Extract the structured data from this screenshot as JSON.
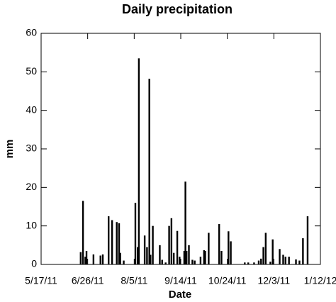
{
  "chart_data": {
    "type": "bar",
    "title": "Daily precipitation",
    "x_label": "Date",
    "y_label": "mm",
    "color": "#000000",
    "x": [
      "6/20/11",
      "6/22/11",
      "6/24/11",
      "6/25/11",
      "7/1/11",
      "7/7/11",
      "7/9/11",
      "7/14/11",
      "7/17/11",
      "7/21/11",
      "7/23/11",
      "7/24/11",
      "7/27/11",
      "8/6/11",
      "8/8/11",
      "8/9/11",
      "8/14/11",
      "8/16/11",
      "8/18/11",
      "8/19/11",
      "8/21/11",
      "8/27/11",
      "8/29/11",
      "9/1/11",
      "9/4/11",
      "9/6/11",
      "9/8/11",
      "9/11/11",
      "9/13/11",
      "9/17/11",
      "9/18/11",
      "9/19/11",
      "9/21/11",
      "9/24/11",
      "9/26/11",
      "10/1/11",
      "10/4/11",
      "10/5/11",
      "10/8/11",
      "10/17/11",
      "10/19/11",
      "10/25/11",
      "10/27/11",
      "11/8/11",
      "11/11/11",
      "11/16/11",
      "11/20/11",
      "11/22/11",
      "11/24/11",
      "11/26/11",
      "11/30/11",
      "12/2/11",
      "12/8/11",
      "12/11/11",
      "12/13/11",
      "12/16/11",
      "12/22/11",
      "12/25/11",
      "12/28/11",
      "1/1/12"
    ],
    "values": [
      3.2,
      16.5,
      2,
      3.5,
      2.6,
      2.3,
      2.6,
      12.5,
      11.5,
      11,
      10.7,
      3,
      1,
      16,
      4.5,
      53.5,
      7.5,
      4.5,
      48.2,
      2.5,
      10,
      5,
      1.2,
      0.5,
      10,
      12,
      3,
      8.7,
      2,
      3.5,
      21.5,
      3.5,
      5,
      1.2,
      1,
      2,
      3.7,
      3.5,
      8.2,
      10.5,
      3.5,
      8.6,
      6,
      0.5,
      0.5,
      0.5,
      1,
      1.5,
      4.5,
      8.2,
      0.7,
      6.5,
      4,
      2.5,
      2,
      2,
      1.3,
      1,
      6.8,
      12.5
    ],
    "xlim": [
      "5/17/11",
      "1/12/12"
    ],
    "xticks": [
      "5/17/11",
      "6/26/11",
      "8/5/11",
      "9/14/11",
      "10/24/11",
      "12/3/11",
      "1/12/12"
    ],
    "ylim": [
      0,
      60
    ],
    "yticks": [
      0,
      10,
      20,
      30,
      40,
      50,
      60
    ]
  }
}
